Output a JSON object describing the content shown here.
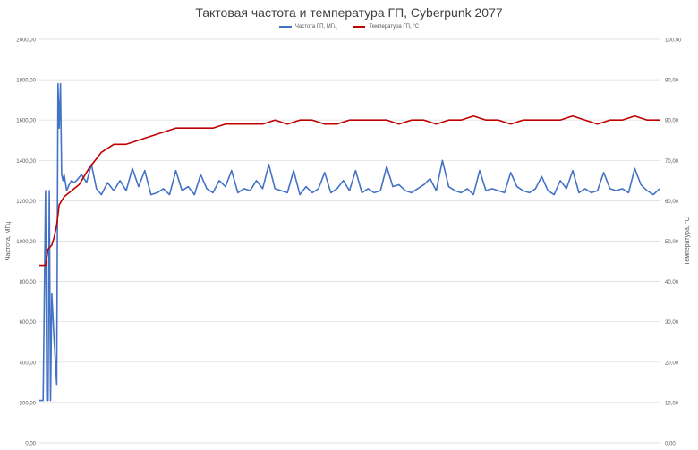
{
  "chart_data": {
    "type": "line",
    "title": "Тактовая частота и температура ГП, Cyberpunk 2077",
    "y_left": {
      "label": "Частота, МГц",
      "range": [
        0,
        2000
      ],
      "ticks": [
        "0,00",
        "200,00",
        "400,00",
        "600,00",
        "800,00",
        "1000,00",
        "1200,00",
        "1400,00",
        "1600,00",
        "1800,00",
        "2000,00"
      ]
    },
    "y_right": {
      "label": "Температура, °С",
      "range": [
        0,
        100
      ],
      "ticks": [
        "0,00",
        "10,00",
        "20,00",
        "30,00",
        "40,00",
        "50,00",
        "60,00",
        "70,00",
        "80,00",
        "90,00",
        "100,00"
      ]
    },
    "grid": true,
    "legend_position": "top-center",
    "series": [
      {
        "name": "Частота ГП, МГц",
        "axis": "left",
        "color": "#4472c4",
        "x": [
          0,
          3,
          5,
          6,
          7,
          8,
          9,
          10,
          12,
          14,
          15,
          16,
          17,
          18,
          19,
          20,
          22,
          24,
          26,
          28,
          30,
          34,
          38,
          42,
          46,
          50,
          55,
          60,
          65,
          70,
          75,
          80,
          85,
          90,
          95,
          100,
          105,
          110,
          115,
          120,
          125,
          130,
          135,
          140,
          145,
          150,
          155,
          160,
          165,
          170,
          175,
          180,
          185,
          190,
          195,
          200,
          205,
          210,
          215,
          220,
          225,
          230,
          235,
          240,
          245,
          250,
          255,
          260,
          265,
          270,
          275,
          280,
          285,
          290,
          295,
          300,
          305,
          310,
          315,
          320,
          325,
          330,
          335,
          340,
          345,
          350,
          355,
          360,
          365,
          370,
          375,
          380,
          385,
          390,
          395,
          400,
          405,
          410,
          415,
          420,
          425,
          430,
          435,
          440,
          445,
          450,
          455,
          460,
          465,
          470,
          475,
          480,
          485,
          490,
          495,
          500
        ],
        "values": [
          210,
          210,
          1250,
          210,
          210,
          1250,
          210,
          740,
          500,
          290,
          1780,
          1560,
          1780,
          1330,
          1300,
          1330,
          1250,
          1280,
          1300,
          1290,
          1300,
          1330,
          1290,
          1380,
          1260,
          1230,
          1290,
          1250,
          1300,
          1250,
          1360,
          1270,
          1350,
          1230,
          1240,
          1260,
          1230,
          1350,
          1250,
          1270,
          1230,
          1330,
          1260,
          1240,
          1300,
          1270,
          1350,
          1240,
          1260,
          1250,
          1300,
          1260,
          1380,
          1260,
          1250,
          1240,
          1350,
          1230,
          1270,
          1240,
          1260,
          1340,
          1240,
          1260,
          1300,
          1250,
          1350,
          1240,
          1260,
          1240,
          1250,
          1370,
          1270,
          1280,
          1250,
          1240,
          1260,
          1280,
          1310,
          1250,
          1400,
          1270,
          1250,
          1240,
          1260,
          1230,
          1350,
          1250,
          1260,
          1250,
          1240,
          1340,
          1270,
          1250,
          1240,
          1260,
          1320,
          1250,
          1230,
          1300,
          1260,
          1350,
          1240,
          1260,
          1240,
          1250,
          1340,
          1260,
          1250,
          1260,
          1240,
          1360,
          1280,
          1250,
          1230,
          1260
        ]
      },
      {
        "name": "Температура ГП, °С",
        "axis": "right",
        "color": "#c00000",
        "x": [
          0,
          5,
          7,
          10,
          12,
          14,
          16,
          18,
          20,
          24,
          28,
          32,
          36,
          40,
          45,
          50,
          55,
          60,
          65,
          70,
          80,
          90,
          100,
          110,
          120,
          130,
          140,
          150,
          160,
          170,
          180,
          190,
          200,
          210,
          220,
          230,
          240,
          250,
          260,
          270,
          280,
          290,
          300,
          310,
          320,
          330,
          340,
          350,
          360,
          370,
          380,
          390,
          400,
          410,
          420,
          430,
          440,
          450,
          460,
          470,
          480,
          490,
          500
        ],
        "values": [
          44,
          44,
          48,
          49,
          51,
          54,
          59,
          60,
          61,
          62,
          63,
          64,
          66,
          68,
          70,
          72,
          73,
          74,
          74,
          74,
          75,
          76,
          77,
          78,
          78,
          78,
          78,
          79,
          79,
          79,
          79,
          80,
          79,
          80,
          80,
          79,
          79,
          80,
          80,
          80,
          80,
          79,
          80,
          80,
          79,
          80,
          80,
          81,
          80,
          80,
          79,
          80,
          80,
          80,
          80,
          81,
          80,
          79,
          80,
          80,
          81,
          80,
          80
        ]
      }
    ]
  }
}
